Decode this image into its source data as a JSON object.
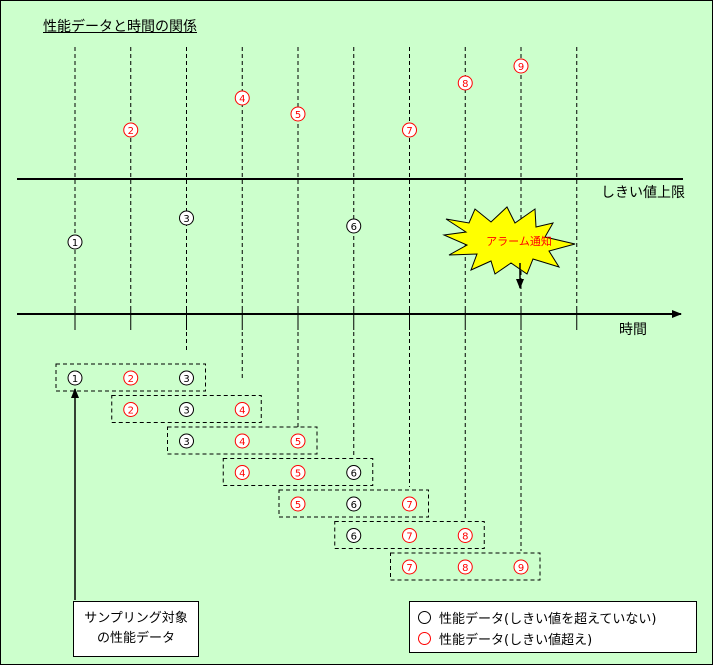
{
  "title": "性能データと時間の関係",
  "threshold_label": "しきい値上限",
  "time_axis_label": "時間",
  "alarm_label": "アラーム通知",
  "sample_label": {
    "line1": "サンプリング対象",
    "line2": "の性能データ"
  },
  "legend": {
    "normal": "性能データ(しきい値を超えていない)",
    "exceeded": "性能データ(しきい値超え)"
  },
  "colors": {
    "background": "#ccffcc",
    "exceeded": "#ff0000",
    "normal": "#000000",
    "burst": "#ffff00"
  },
  "data_points": [
    {
      "label": "1",
      "exceeded": false
    },
    {
      "label": "2",
      "exceeded": true
    },
    {
      "label": "3",
      "exceeded": false
    },
    {
      "label": "4",
      "exceeded": true
    },
    {
      "label": "5",
      "exceeded": true
    },
    {
      "label": "6",
      "exceeded": false
    },
    {
      "label": "7",
      "exceeded": true
    },
    {
      "label": "8",
      "exceeded": true
    },
    {
      "label": "9",
      "exceeded": true
    }
  ],
  "windows": [
    [
      "1",
      "2",
      "3"
    ],
    [
      "2",
      "3",
      "4"
    ],
    [
      "3",
      "4",
      "5"
    ],
    [
      "4",
      "5",
      "6"
    ],
    [
      "5",
      "6",
      "7"
    ],
    [
      "6",
      "7",
      "8"
    ],
    [
      "7",
      "8",
      "9"
    ]
  ]
}
